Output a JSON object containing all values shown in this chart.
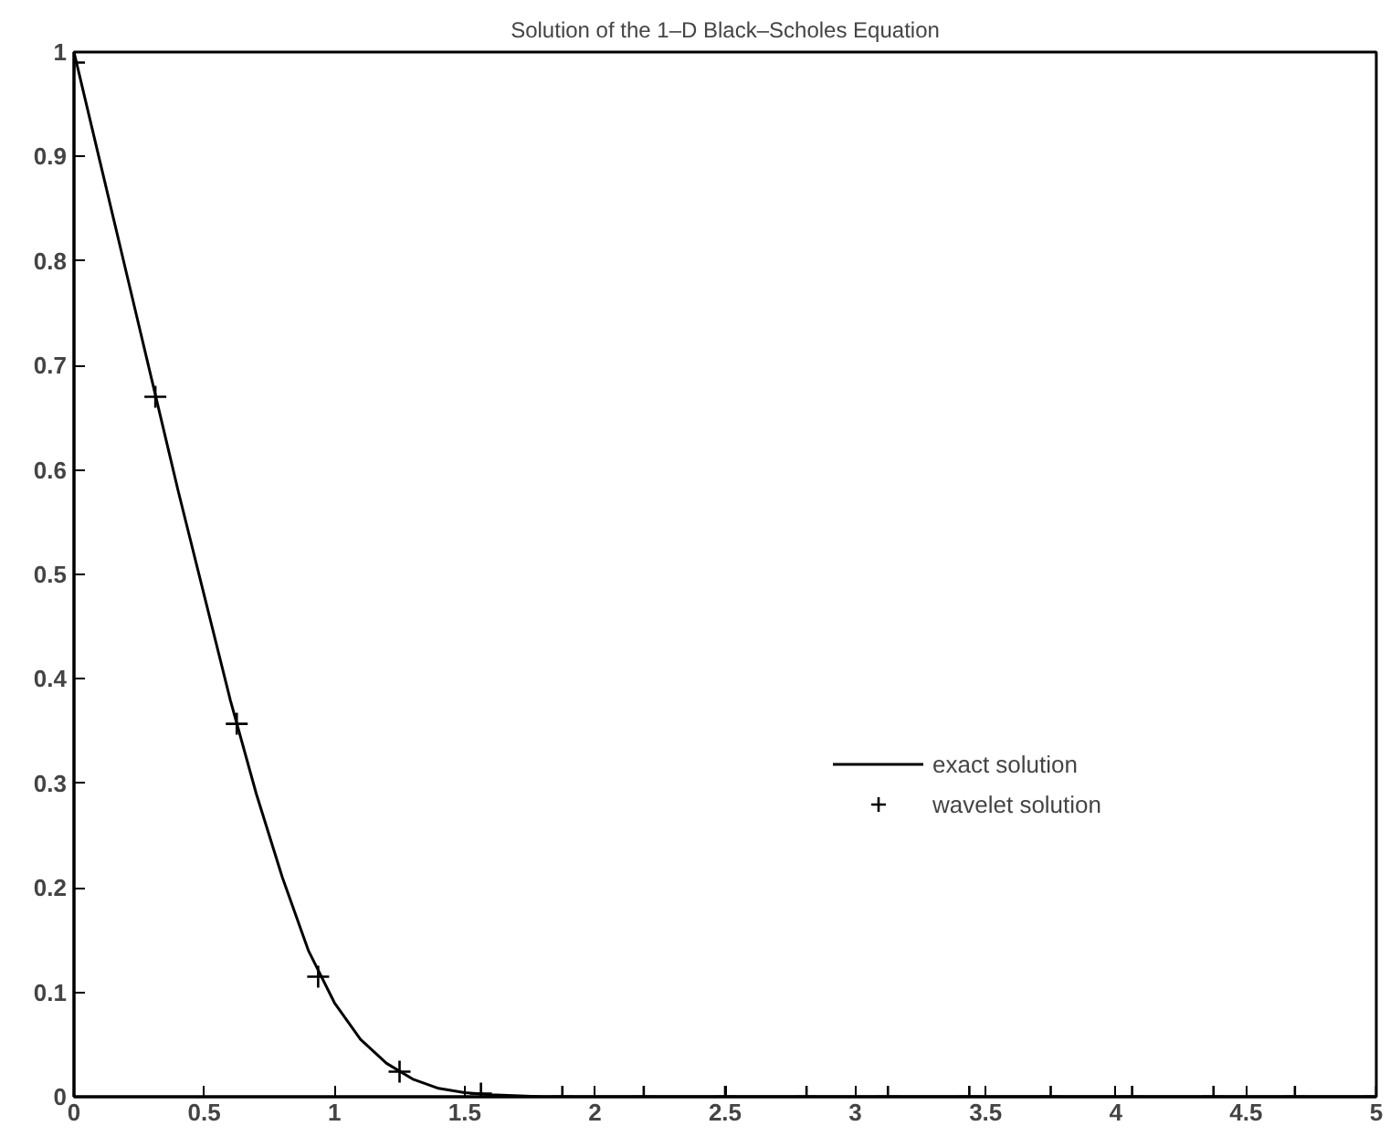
{
  "chart_data": {
    "type": "line",
    "title": "Solution of the 1–D Black–Scholes Equation",
    "xlim": [
      0,
      5
    ],
    "ylim": [
      0,
      1
    ],
    "xticks": [
      0,
      0.5,
      1,
      1.5,
      2,
      2.5,
      3,
      3.5,
      4,
      4.5,
      5
    ],
    "yticks": [
      0,
      0.1,
      0.2,
      0.3,
      0.4,
      0.5,
      0.6,
      0.7,
      0.8,
      0.9,
      1
    ],
    "grid": false,
    "legend": "bottom right",
    "series": [
      {
        "name": "exact solution",
        "color": "#000000",
        "line_style": "solid",
        "marker": "none",
        "x": [
          0,
          0.1,
          0.2,
          0.3,
          0.4,
          0.5,
          0.6,
          0.7,
          0.8,
          0.9,
          1.0,
          1.1,
          1.2,
          1.3,
          1.4,
          1.5,
          1.6,
          1.8,
          2.0,
          3.0,
          4.0,
          5.0
        ],
        "values": [
          1,
          0.895,
          0.79,
          0.685,
          0.58,
          0.48,
          0.38,
          0.29,
          0.21,
          0.14,
          0.09,
          0.055,
          0.032,
          0.017,
          0.008,
          0.004,
          0.002,
          0,
          0,
          0,
          0,
          0
        ]
      },
      {
        "name": "wavelet solution",
        "type": "scatter",
        "color": "#000000",
        "marker": "cross",
        "x": [
          0,
          0.3125,
          0.625,
          0.9375,
          1.25,
          1.5625,
          1.875,
          2.1875,
          2.5,
          2.8125,
          3.125,
          3.4375,
          3.75,
          4.0625,
          4.375,
          4.6875,
          5
        ],
        "values": [
          0.99,
          0.67,
          0.357,
          0.115,
          0.024,
          0.003,
          0,
          0,
          0,
          0,
          0,
          0,
          0,
          0,
          0,
          0,
          0
        ]
      }
    ]
  }
}
